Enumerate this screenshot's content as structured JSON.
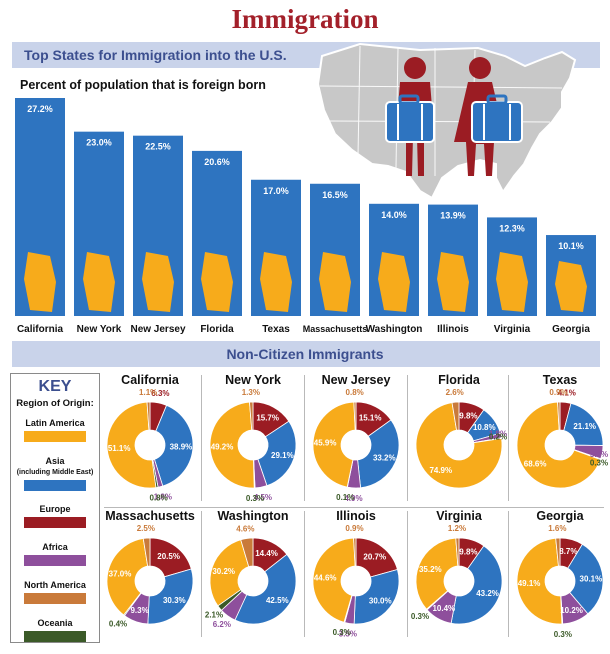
{
  "page": {
    "title": "Immigration"
  },
  "bar_section": {
    "band_title": "Top States for Immigration into the U.S.",
    "subtitle": "Percent of population that is foreign born"
  },
  "pie_section": {
    "band_title": "Non-Citizen Immigrants"
  },
  "key": {
    "title": "KEY",
    "subtitle": "Region of Origin:",
    "items": [
      {
        "label": "Latin America",
        "color": "#f7ab1b"
      },
      {
        "label": "Asia",
        "sublabel": "(including Middle East)",
        "color": "#2e74c0"
      },
      {
        "label": "Europe",
        "color": "#9b1c23"
      },
      {
        "label": "Africa",
        "color": "#8e4f9c"
      },
      {
        "label": "North America",
        "color": "#c97a3a"
      },
      {
        "label": "Oceania",
        "color": "#3b5a28"
      }
    ]
  },
  "chart_data": [
    {
      "type": "bar",
      "title": "Top States for Immigration into the U.S.",
      "subtitle": "Percent of population that is foreign born",
      "categories": [
        "California",
        "New York",
        "New Jersey",
        "Florida",
        "Texas",
        "Massachusetts",
        "Washington",
        "Illinois",
        "Virginia",
        "Georgia"
      ],
      "values": [
        27.2,
        23.0,
        22.5,
        20.6,
        17.0,
        16.5,
        14.0,
        13.9,
        12.3,
        10.1
      ],
      "value_labels": [
        "27.2%",
        "23.0%",
        "22.5%",
        "20.6%",
        "17.0%",
        "16.5%",
        "14.0%",
        "13.9%",
        "12.3%",
        "10.1%"
      ],
      "ylim": [
        0,
        27.2
      ],
      "bar_color": "#2e74c0",
      "state_shape_color": "#f7ab1b"
    },
    {
      "type": "pie",
      "title": "Non-Citizen Immigrants",
      "series_order": [
        "Latin America",
        "Asia",
        "Europe",
        "Africa",
        "North America",
        "Oceania"
      ],
      "charts": [
        {
          "state": "California",
          "values": [
            51.1,
            38.9,
            6.3,
            1.8,
            1.1,
            0.8
          ],
          "labels": [
            "51.1%",
            "38.9%",
            "6.3%",
            "1.8%",
            "1.1%",
            "0.8%"
          ]
        },
        {
          "state": "New York",
          "values": [
            49.2,
            29.1,
            15.7,
            4.5,
            1.3,
            0.3
          ],
          "labels": [
            "49.2%",
            "29.1%",
            "15.7%",
            "4.5%",
            "1.3%",
            "0.3%"
          ]
        },
        {
          "state": "New Jersey",
          "values": [
            45.9,
            33.2,
            15.1,
            4.9,
            0.8,
            0.1
          ],
          "labels": [
            "45.9%",
            "33.2%",
            "15.1%",
            "4.9%",
            "0.8%",
            "0.1%"
          ]
        },
        {
          "state": "Florida",
          "values": [
            74.9,
            10.8,
            9.8,
            1.8,
            2.6,
            0.2
          ],
          "labels": [
            "74.9%",
            "10.8%",
            "9.8%",
            "1.8%",
            "2.6%",
            "0.2%"
          ]
        },
        {
          "state": "Texas",
          "values": [
            68.6,
            21.1,
            4.1,
            5.0,
            0.9,
            0.3
          ],
          "labels": [
            "68.6%",
            "21.1%",
            "4.1%",
            "5.0%",
            "0.9%",
            "0.3%"
          ]
        },
        {
          "state": "Massachusetts",
          "values": [
            37.0,
            30.3,
            20.5,
            9.3,
            2.5,
            0.4
          ],
          "labels": [
            "37.0%",
            "30.3%",
            "20.5%",
            "9.3%",
            "2.5%",
            "0.4%"
          ]
        },
        {
          "state": "Washington",
          "values": [
            30.2,
            42.5,
            14.4,
            6.2,
            4.6,
            2.1
          ],
          "labels": [
            "30.2%",
            "42.5%",
            "14.4%",
            "6.2%",
            "4.6%",
            "2.1%"
          ]
        },
        {
          "state": "Illinois",
          "values": [
            44.6,
            30.0,
            20.7,
            3.5,
            0.9,
            0.3
          ],
          "labels": [
            "44.6%",
            "30.0%",
            "20.7%",
            "3.5%",
            "0.9%",
            "0.3%"
          ]
        },
        {
          "state": "Virginia",
          "values": [
            35.2,
            43.2,
            9.8,
            10.4,
            1.2,
            0.3
          ],
          "labels": [
            "35.2%",
            "43.2%",
            "9.8%",
            "10.4%",
            "1.2%",
            "0.3%"
          ]
        },
        {
          "state": "Georgia",
          "values": [
            49.1,
            30.1,
            8.7,
            10.2,
            1.6,
            0.3
          ],
          "labels": [
            "49.1%",
            "30.1%",
            "8.7%",
            "10.2%",
            "1.6%",
            "0.3%"
          ]
        }
      ]
    }
  ]
}
